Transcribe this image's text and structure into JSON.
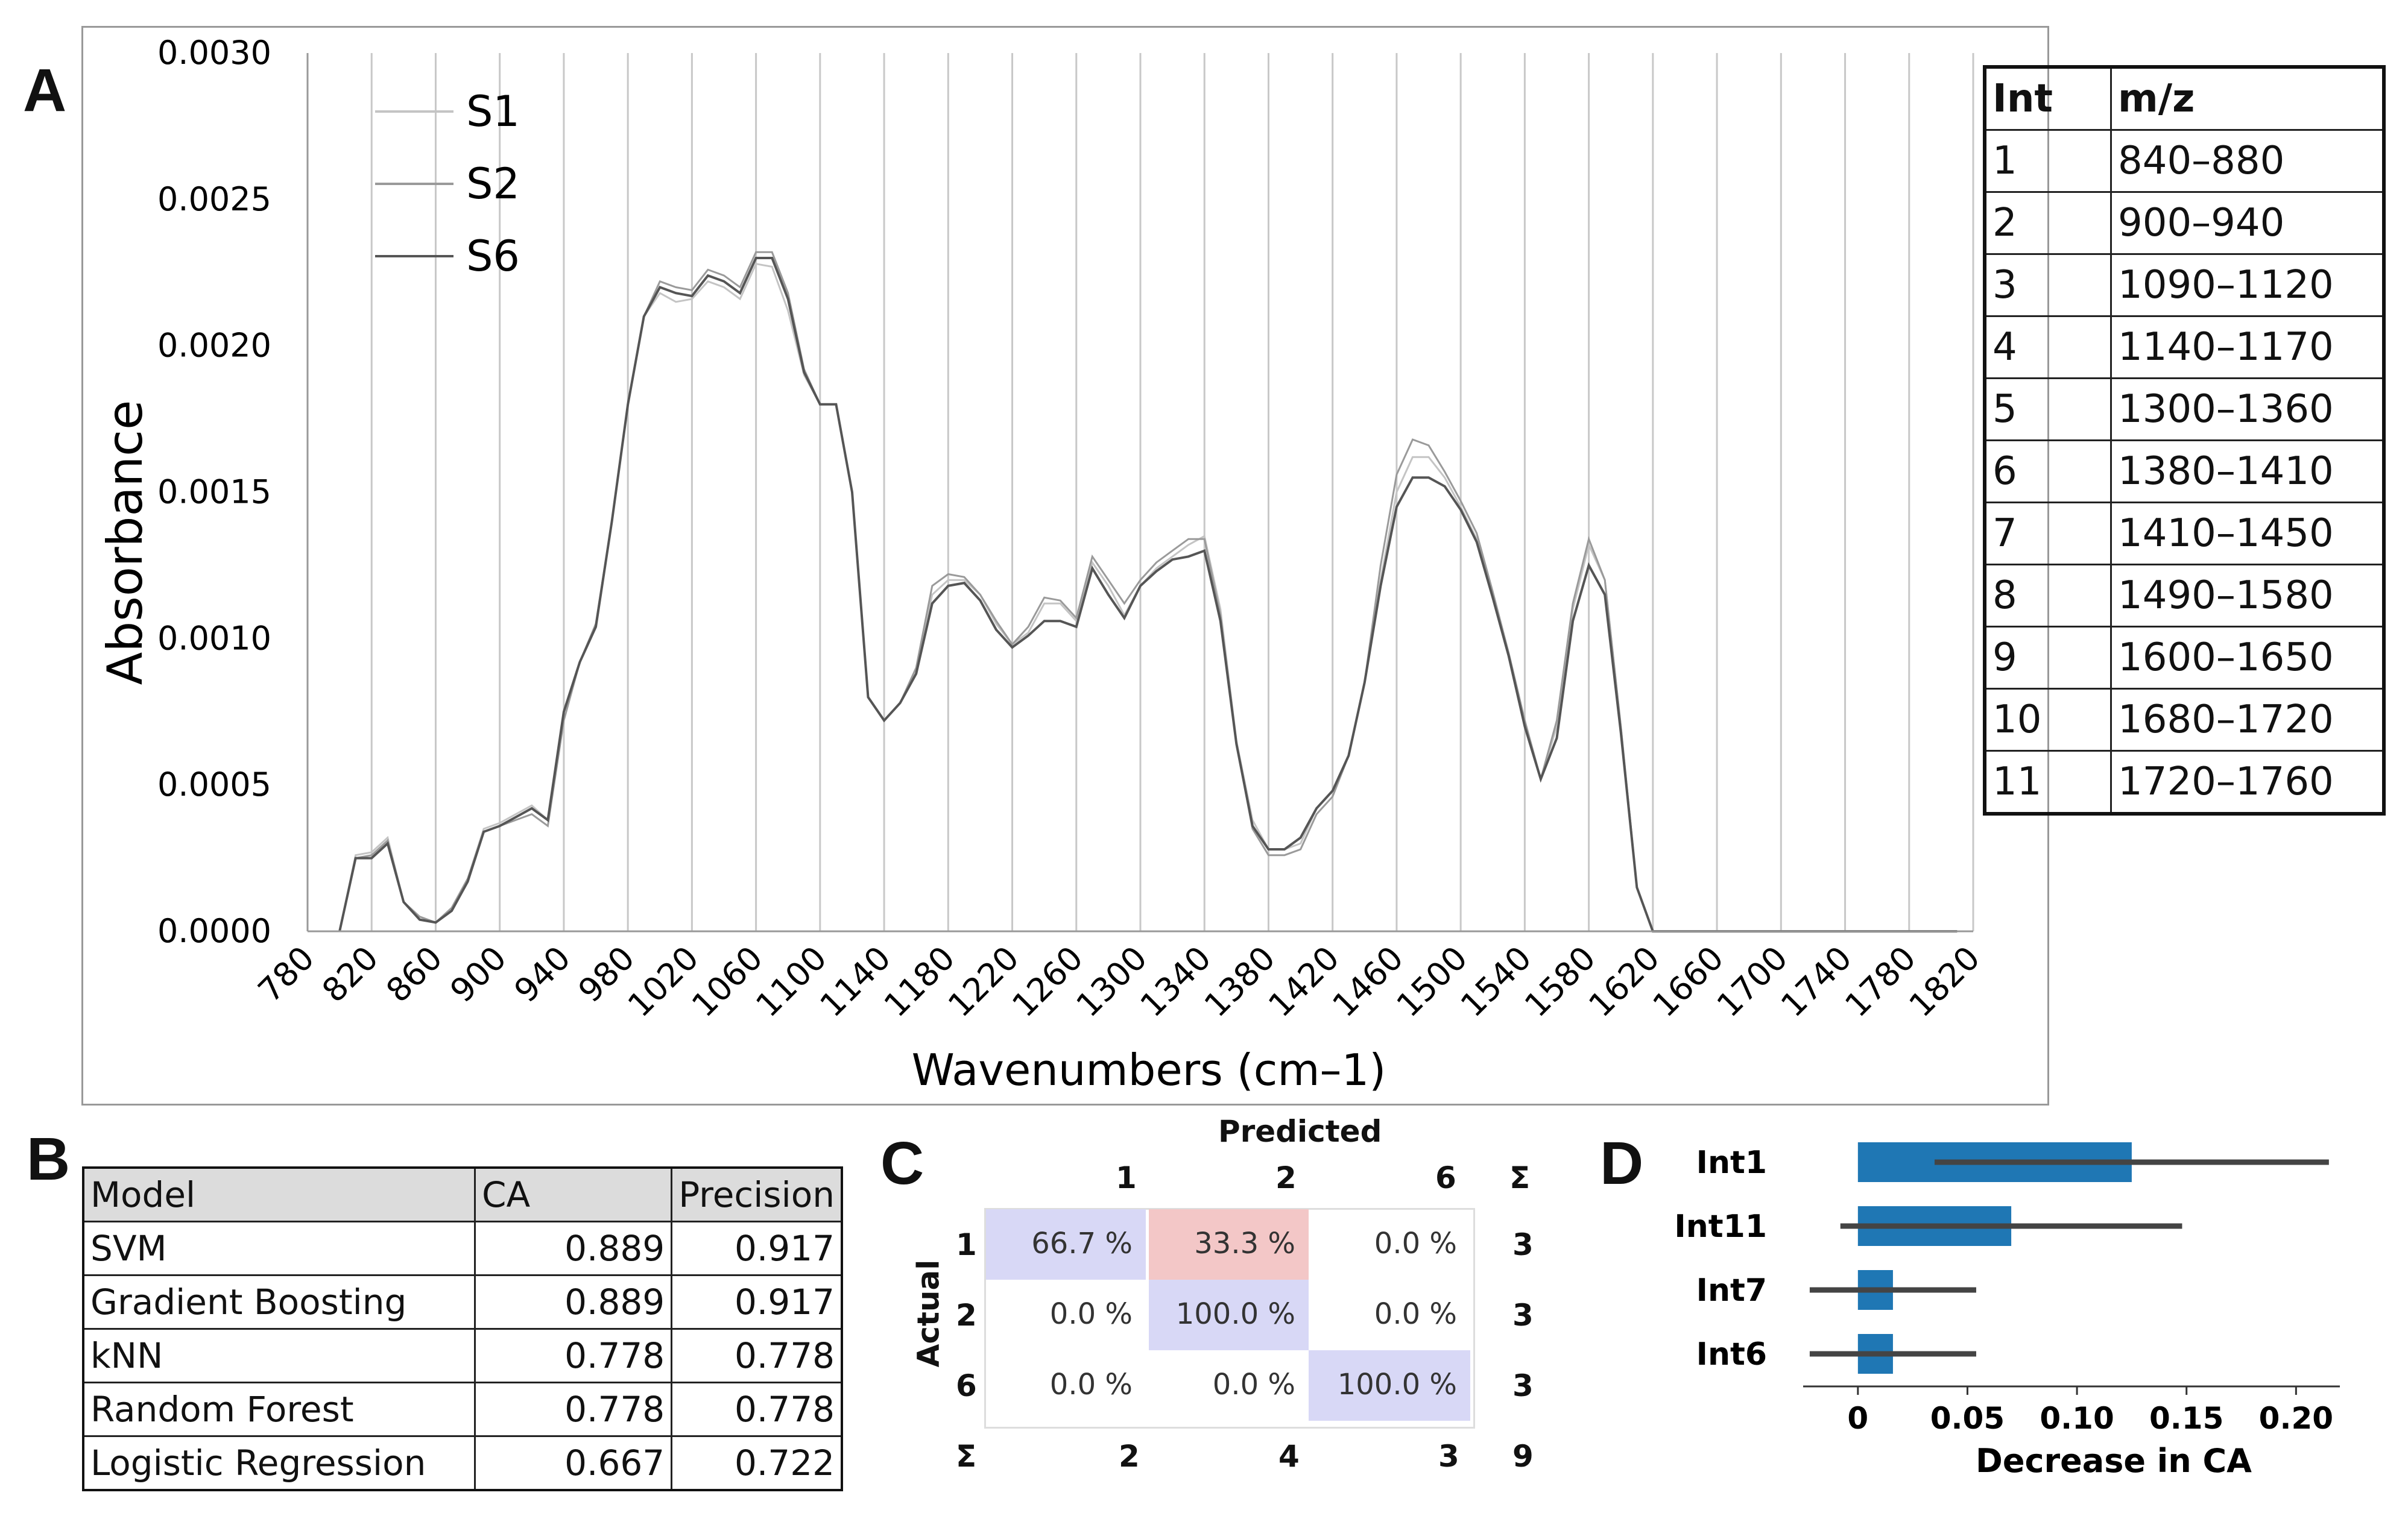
{
  "panels": {
    "a": "A",
    "b": "B",
    "c": "C",
    "d": "D"
  },
  "chart_data": [
    {
      "type": "line",
      "panel": "A",
      "xlabel": "Wavenumbers (cm–1)",
      "ylabel": "Absorbance",
      "xlim": [
        780,
        1820
      ],
      "ylim": [
        0.0,
        0.003
      ],
      "x_ticks": [
        "780",
        "820",
        "860",
        "900",
        "940",
        "980",
        "1020",
        "1060",
        "1100",
        "1140",
        "1180",
        "1220",
        "1260",
        "1300",
        "1340",
        "1380",
        "1420",
        "1460",
        "1500",
        "1540",
        "1580",
        "1620",
        "1660",
        "1700",
        "1740",
        "1780",
        "1820"
      ],
      "y_ticks": [
        "0.0000",
        "0.0005",
        "0.0010",
        "0.0015",
        "0.0020",
        "0.0025",
        "0.0030"
      ],
      "legend": [
        "S1",
        "S2",
        "S6"
      ],
      "series": [
        {
          "name": "S1",
          "color": "#c4c4c4",
          "x": [
            800,
            810,
            820,
            830,
            840,
            850,
            860,
            870,
            880,
            890,
            900,
            910,
            920,
            930,
            940,
            950,
            960,
            970,
            980,
            990,
            1000,
            1010,
            1020,
            1030,
            1040,
            1050,
            1060,
            1070,
            1080,
            1090,
            1100,
            1110,
            1120,
            1130,
            1140,
            1150,
            1160,
            1170,
            1180,
            1190,
            1200,
            1210,
            1220,
            1230,
            1240,
            1250,
            1260,
            1270,
            1280,
            1290,
            1300,
            1310,
            1320,
            1330,
            1340,
            1350,
            1360,
            1370,
            1380,
            1390,
            1400,
            1410,
            1420,
            1430,
            1440,
            1450,
            1460,
            1470,
            1480,
            1490,
            1500,
            1510,
            1520,
            1530,
            1540,
            1550,
            1560,
            1570,
            1580,
            1590,
            1600,
            1610,
            1620,
            1630,
            1640,
            1650,
            1660,
            1670,
            1680,
            1690,
            1700,
            1710,
            1720,
            1730,
            1740,
            1750,
            1760,
            1770,
            1780,
            1790,
            1800,
            1810
          ],
          "values": [
            0.0,
            0.00026,
            0.00027,
            0.00032,
            0.0001,
            5e-05,
            3e-05,
            8e-05,
            0.00018,
            0.00035,
            0.00037,
            0.0004,
            0.00043,
            0.00038,
            0.00075,
            0.00092,
            0.00105,
            0.0014,
            0.0018,
            0.0021,
            0.00218,
            0.00215,
            0.00216,
            0.00222,
            0.0022,
            0.00216,
            0.00228,
            0.00227,
            0.00212,
            0.0019,
            0.0018,
            0.0018,
            0.0015,
            0.0008,
            0.00072,
            0.00078,
            0.0009,
            0.00115,
            0.0012,
            0.0012,
            0.00115,
            0.00105,
            0.00098,
            0.00102,
            0.00112,
            0.00112,
            0.00106,
            0.00126,
            0.00118,
            0.00108,
            0.00118,
            0.00124,
            0.00128,
            0.00132,
            0.00135,
            0.0011,
            0.00065,
            0.00038,
            0.00028,
            0.00028,
            0.0003,
            0.00042,
            0.00048,
            0.0006,
            0.00085,
            0.0012,
            0.0015,
            0.00162,
            0.00162,
            0.00155,
            0.00145,
            0.00134,
            0.00115,
            0.00095,
            0.00072,
            0.00052,
            0.0007,
            0.0011,
            0.00132,
            0.0012,
            0.0007,
            0.00015,
            0.0,
            0.0,
            0.0,
            0.0,
            0.0,
            0.0,
            0.0,
            0.0,
            0.0,
            0.0,
            0.0,
            0.0,
            0.0,
            0.0,
            0.0,
            0.0,
            0.0,
            0.0,
            0.0,
            0.0
          ]
        },
        {
          "name": "S2",
          "color": "#9a9a9a",
          "x": [
            800,
            810,
            820,
            830,
            840,
            850,
            860,
            870,
            880,
            890,
            900,
            910,
            920,
            930,
            940,
            950,
            960,
            970,
            980,
            990,
            1000,
            1010,
            1020,
            1030,
            1040,
            1050,
            1060,
            1070,
            1080,
            1090,
            1100,
            1110,
            1120,
            1130,
            1140,
            1150,
            1160,
            1170,
            1180,
            1190,
            1200,
            1210,
            1220,
            1230,
            1240,
            1250,
            1260,
            1270,
            1280,
            1290,
            1300,
            1310,
            1320,
            1330,
            1340,
            1350,
            1360,
            1370,
            1380,
            1390,
            1400,
            1410,
            1420,
            1430,
            1440,
            1450,
            1460,
            1470,
            1480,
            1490,
            1500,
            1510,
            1520,
            1530,
            1540,
            1550,
            1560,
            1570,
            1580,
            1590,
            1600,
            1610,
            1620,
            1630,
            1640,
            1650,
            1660,
            1670,
            1680,
            1690,
            1700,
            1710,
            1720,
            1730,
            1740,
            1750,
            1760,
            1770,
            1780,
            1790,
            1800,
            1810
          ],
          "values": [
            0.0,
            0.00025,
            0.00026,
            0.00031,
            0.0001,
            5e-05,
            3e-05,
            8e-05,
            0.00018,
            0.00034,
            0.00036,
            0.00038,
            0.0004,
            0.00036,
            0.00072,
            0.00092,
            0.00105,
            0.0014,
            0.0018,
            0.0021,
            0.00222,
            0.0022,
            0.00219,
            0.00226,
            0.00224,
            0.0022,
            0.00232,
            0.00232,
            0.00218,
            0.00192,
            0.0018,
            0.0018,
            0.0015,
            0.0008,
            0.00072,
            0.00078,
            0.0009,
            0.00118,
            0.00122,
            0.00121,
            0.00115,
            0.00106,
            0.00098,
            0.00104,
            0.00114,
            0.00113,
            0.00107,
            0.00128,
            0.0012,
            0.00112,
            0.0012,
            0.00126,
            0.0013,
            0.00134,
            0.00134,
            0.00108,
            0.00064,
            0.00035,
            0.00026,
            0.00026,
            0.00028,
            0.0004,
            0.00046,
            0.0006,
            0.00085,
            0.00125,
            0.00156,
            0.00168,
            0.00166,
            0.00157,
            0.00147,
            0.00136,
            0.00116,
            0.00095,
            0.00072,
            0.00052,
            0.00072,
            0.00112,
            0.00134,
            0.0012,
            0.0007,
            0.00015,
            0.0,
            0.0,
            0.0,
            0.0,
            0.0,
            0.0,
            0.0,
            0.0,
            0.0,
            0.0,
            0.0,
            0.0,
            0.0,
            0.0,
            0.0,
            0.0,
            0.0,
            0.0,
            0.0,
            0.0
          ]
        },
        {
          "name": "S6",
          "color": "#555555",
          "x": [
            800,
            810,
            820,
            830,
            840,
            850,
            860,
            870,
            880,
            890,
            900,
            910,
            920,
            930,
            940,
            950,
            960,
            970,
            980,
            990,
            1000,
            1010,
            1020,
            1030,
            1040,
            1050,
            1060,
            1070,
            1080,
            1090,
            1100,
            1110,
            1120,
            1130,
            1140,
            1150,
            1160,
            1170,
            1180,
            1190,
            1200,
            1210,
            1220,
            1230,
            1240,
            1250,
            1260,
            1270,
            1280,
            1290,
            1300,
            1310,
            1320,
            1330,
            1340,
            1350,
            1360,
            1370,
            1380,
            1390,
            1400,
            1410,
            1420,
            1430,
            1440,
            1450,
            1460,
            1470,
            1480,
            1490,
            1500,
            1510,
            1520,
            1530,
            1540,
            1550,
            1560,
            1570,
            1580,
            1590,
            1600,
            1610,
            1620,
            1630,
            1640,
            1650,
            1660,
            1670,
            1680,
            1690,
            1700,
            1710,
            1720,
            1730,
            1740,
            1750,
            1760,
            1770,
            1780,
            1790,
            1800,
            1810
          ],
          "values": [
            0.0,
            0.00025,
            0.00025,
            0.0003,
            0.0001,
            4e-05,
            3e-05,
            7e-05,
            0.00017,
            0.00034,
            0.00036,
            0.00039,
            0.00042,
            0.00038,
            0.00075,
            0.00092,
            0.00104,
            0.0014,
            0.0018,
            0.0021,
            0.0022,
            0.00218,
            0.00217,
            0.00224,
            0.00222,
            0.00218,
            0.0023,
            0.0023,
            0.00216,
            0.00191,
            0.0018,
            0.0018,
            0.0015,
            0.0008,
            0.00072,
            0.00078,
            0.00088,
            0.00112,
            0.00118,
            0.00119,
            0.00113,
            0.00103,
            0.00097,
            0.00101,
            0.00106,
            0.00106,
            0.00104,
            0.00124,
            0.00115,
            0.00107,
            0.00118,
            0.00123,
            0.00127,
            0.00128,
            0.0013,
            0.00106,
            0.00064,
            0.00036,
            0.00028,
            0.00028,
            0.00032,
            0.00042,
            0.00048,
            0.0006,
            0.00085,
            0.00118,
            0.00145,
            0.00155,
            0.00155,
            0.00152,
            0.00144,
            0.00133,
            0.00114,
            0.00094,
            0.0007,
            0.00052,
            0.00066,
            0.00106,
            0.00125,
            0.00115,
            0.00068,
            0.00015,
            0.0,
            0.0,
            0.0,
            0.0,
            0.0,
            0.0,
            0.0,
            0.0,
            0.0,
            0.0,
            0.0,
            0.0,
            0.0,
            0.0,
            0.0,
            0.0,
            0.0,
            0.0,
            0.0,
            0.0
          ]
        }
      ]
    },
    {
      "type": "table",
      "panel": "A-inset",
      "columns": [
        "Int",
        "m/z"
      ],
      "rows": [
        [
          "1",
          "840–880"
        ],
        [
          "2",
          "900–940"
        ],
        [
          "3",
          "1090–1120"
        ],
        [
          "4",
          "1140–1170"
        ],
        [
          "5",
          "1300–1360"
        ],
        [
          "6",
          "1380–1410"
        ],
        [
          "7",
          "1410–1450"
        ],
        [
          "8",
          "1490–1580"
        ],
        [
          "9",
          "1600–1650"
        ],
        [
          "10",
          "1680–1720"
        ],
        [
          "11",
          "1720–1760"
        ]
      ]
    },
    {
      "type": "table",
      "panel": "B",
      "columns": [
        "Model",
        "CA",
        "Precision"
      ],
      "rows": [
        [
          "SVM",
          "0.889",
          "0.917"
        ],
        [
          "Gradient Boosting",
          "0.889",
          "0.917"
        ],
        [
          "kNN",
          "0.778",
          "0.778"
        ],
        [
          "Random Forest",
          "0.778",
          "0.778"
        ],
        [
          "Logistic Regression",
          "0.667",
          "0.722"
        ]
      ]
    },
    {
      "type": "heatmap",
      "panel": "C",
      "title": "Predicted",
      "ylabel": "Actual",
      "col_labels": [
        "1",
        "2",
        "6",
        "Σ"
      ],
      "row_labels": [
        "1",
        "2",
        "6",
        "Σ"
      ],
      "cells": [
        [
          "66.7 %",
          "33.3 %",
          "0.0 %"
        ],
        [
          "0.0 %",
          "100.0 %",
          "0.0 %"
        ],
        [
          "0.0 %",
          "0.0 %",
          "100.0 %"
        ]
      ],
      "row_sums": [
        "3",
        "3",
        "3"
      ],
      "col_sums": [
        "2",
        "4",
        "3",
        "9"
      ],
      "highlight": [
        [
          "blue",
          "red",
          ""
        ],
        [
          "",
          "blue",
          ""
        ],
        [
          "",
          "",
          "blue"
        ]
      ]
    },
    {
      "type": "bar",
      "panel": "D",
      "orientation": "horizontal",
      "xlabel": "Decrease in CA",
      "categories": [
        "Int1",
        "Int11",
        "Int7",
        "Int6"
      ],
      "values": [
        0.125,
        0.07,
        0.016,
        0.016
      ],
      "errors": [
        [
          0.035,
          0.215
        ],
        [
          -0.008,
          0.148
        ],
        [
          -0.022,
          0.054
        ],
        [
          -0.022,
          0.054
        ]
      ],
      "xlim": [
        -0.025,
        0.22
      ],
      "x_ticks": [
        "0",
        "0.05",
        "0.10",
        "0.15",
        "0.20"
      ],
      "bar_color": "#1f77b4"
    }
  ],
  "colors": {
    "grid": "#c8c8c8",
    "cm_blue": "#d8d8f6",
    "cm_red": "#f3c7c7",
    "bar": "#1f77b4",
    "err": "#444444"
  }
}
